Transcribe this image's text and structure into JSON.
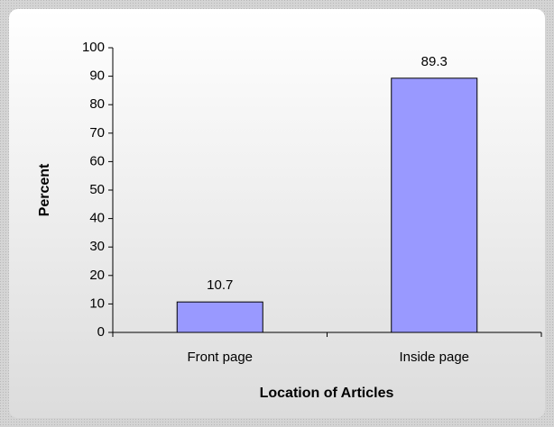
{
  "chart_data": {
    "type": "bar",
    "categories": [
      "Front page",
      "Inside page"
    ],
    "values": [
      10.7,
      89.3
    ],
    "color": "#9999ff",
    "x_label": "Location of Articles",
    "y_label": "Percent",
    "ylim": [
      0,
      100
    ],
    "yticks": [
      0,
      10,
      20,
      30,
      40,
      50,
      60,
      70,
      80,
      90,
      100
    ]
  }
}
